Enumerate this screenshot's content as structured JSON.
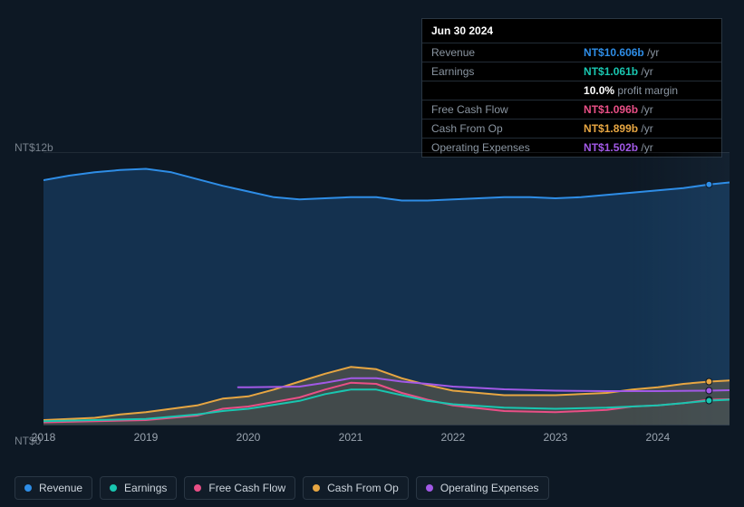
{
  "colors": {
    "revenue": "#2e8de6",
    "earnings": "#19c6b0",
    "free_cash_flow": "#e94f86",
    "cash_from_op": "#e7a642",
    "operating_expenses": "#a259e6",
    "bg": "#0d1824",
    "tooltip_bg": "#000000",
    "tooltip_border": "#2a3642",
    "text_muted": "#8a95a1"
  },
  "tooltip": {
    "date": "Jun 30 2024",
    "rows": [
      {
        "label": "Revenue",
        "value": "NT$10.606b",
        "suffix": "/yr",
        "colorKey": "revenue"
      },
      {
        "label": "Earnings",
        "value": "NT$1.061b",
        "suffix": "/yr",
        "colorKey": "earnings"
      },
      {
        "label": "",
        "value": "10.0%",
        "suffix": "profit margin",
        "colorKey": ""
      },
      {
        "label": "Free Cash Flow",
        "value": "NT$1.096b",
        "suffix": "/yr",
        "colorKey": "free_cash_flow"
      },
      {
        "label": "Cash From Op",
        "value": "NT$1.899b",
        "suffix": "/yr",
        "colorKey": "cash_from_op"
      },
      {
        "label": "Operating Expenses",
        "value": "NT$1.502b",
        "suffix": "/yr",
        "colorKey": "operating_expenses"
      }
    ]
  },
  "chart": {
    "type": "area-line",
    "ylim": [
      0,
      12
    ],
    "y_ticks": [
      {
        "v": 12,
        "label": "NT$12b"
      },
      {
        "v": 0,
        "label": "NT$0"
      }
    ],
    "x_range": [
      2018,
      2024.7
    ],
    "x_ticks": [
      2018,
      2019,
      2020,
      2021,
      2022,
      2023,
      2024
    ],
    "marker_x": 2024.5,
    "series": {
      "revenue": {
        "fill": true,
        "points": [
          [
            2018,
            10.8
          ],
          [
            2018.25,
            11.0
          ],
          [
            2018.5,
            11.15
          ],
          [
            2018.75,
            11.25
          ],
          [
            2019,
            11.3
          ],
          [
            2019.25,
            11.15
          ],
          [
            2019.5,
            10.85
          ],
          [
            2019.75,
            10.55
          ],
          [
            2020,
            10.3
          ],
          [
            2020.25,
            10.05
          ],
          [
            2020.5,
            9.95
          ],
          [
            2020.75,
            10.0
          ],
          [
            2021,
            10.05
          ],
          [
            2021.25,
            10.05
          ],
          [
            2021.5,
            9.9
          ],
          [
            2021.75,
            9.9
          ],
          [
            2022,
            9.95
          ],
          [
            2022.25,
            10.0
          ],
          [
            2022.5,
            10.05
          ],
          [
            2022.75,
            10.05
          ],
          [
            2023,
            10.0
          ],
          [
            2023.25,
            10.05
          ],
          [
            2023.5,
            10.15
          ],
          [
            2023.75,
            10.25
          ],
          [
            2024,
            10.35
          ],
          [
            2024.25,
            10.45
          ],
          [
            2024.5,
            10.61
          ],
          [
            2024.7,
            10.7
          ]
        ]
      },
      "cash_from_op": {
        "fill": true,
        "points": [
          [
            2018,
            0.2
          ],
          [
            2018.5,
            0.3
          ],
          [
            2018.75,
            0.45
          ],
          [
            2019,
            0.55
          ],
          [
            2019.5,
            0.85
          ],
          [
            2019.75,
            1.15
          ],
          [
            2020,
            1.25
          ],
          [
            2020.25,
            1.55
          ],
          [
            2020.5,
            1.9
          ],
          [
            2020.75,
            2.25
          ],
          [
            2021,
            2.55
          ],
          [
            2021.25,
            2.45
          ],
          [
            2021.5,
            2.05
          ],
          [
            2021.75,
            1.75
          ],
          [
            2022,
            1.5
          ],
          [
            2022.5,
            1.3
          ],
          [
            2023,
            1.3
          ],
          [
            2023.5,
            1.4
          ],
          [
            2023.75,
            1.55
          ],
          [
            2024,
            1.65
          ],
          [
            2024.25,
            1.8
          ],
          [
            2024.5,
            1.9
          ],
          [
            2024.7,
            1.95
          ]
        ]
      },
      "operating_expenses": {
        "fill": false,
        "points": [
          [
            2019.9,
            1.65
          ],
          [
            2020,
            1.65
          ],
          [
            2020.5,
            1.68
          ],
          [
            2020.75,
            1.85
          ],
          [
            2021,
            2.05
          ],
          [
            2021.25,
            2.05
          ],
          [
            2021.5,
            1.9
          ],
          [
            2021.75,
            1.8
          ],
          [
            2022,
            1.68
          ],
          [
            2022.5,
            1.56
          ],
          [
            2023,
            1.5
          ],
          [
            2023.5,
            1.48
          ],
          [
            2024,
            1.48
          ],
          [
            2024.5,
            1.5
          ],
          [
            2024.7,
            1.52
          ]
        ]
      },
      "free_cash_flow": {
        "fill": false,
        "points": [
          [
            2018,
            0.1
          ],
          [
            2018.5,
            0.15
          ],
          [
            2019,
            0.2
          ],
          [
            2019.5,
            0.4
          ],
          [
            2019.75,
            0.7
          ],
          [
            2020,
            0.8
          ],
          [
            2020.5,
            1.2
          ],
          [
            2020.75,
            1.55
          ],
          [
            2021,
            1.85
          ],
          [
            2021.25,
            1.8
          ],
          [
            2021.5,
            1.4
          ],
          [
            2021.75,
            1.1
          ],
          [
            2022,
            0.85
          ],
          [
            2022.5,
            0.6
          ],
          [
            2023,
            0.55
          ],
          [
            2023.5,
            0.65
          ],
          [
            2023.75,
            0.8
          ],
          [
            2024,
            0.85
          ],
          [
            2024.25,
            0.95
          ],
          [
            2024.5,
            1.1
          ],
          [
            2024.7,
            1.12
          ]
        ]
      },
      "earnings": {
        "fill": false,
        "points": [
          [
            2018,
            0.15
          ],
          [
            2018.5,
            0.2
          ],
          [
            2019,
            0.25
          ],
          [
            2019.5,
            0.45
          ],
          [
            2019.75,
            0.6
          ],
          [
            2020,
            0.7
          ],
          [
            2020.5,
            1.05
          ],
          [
            2020.75,
            1.35
          ],
          [
            2021,
            1.55
          ],
          [
            2021.25,
            1.55
          ],
          [
            2021.5,
            1.3
          ],
          [
            2021.75,
            1.05
          ],
          [
            2022,
            0.9
          ],
          [
            2022.5,
            0.75
          ],
          [
            2023,
            0.7
          ],
          [
            2023.5,
            0.75
          ],
          [
            2024,
            0.85
          ],
          [
            2024.25,
            0.95
          ],
          [
            2024.5,
            1.06
          ],
          [
            2024.7,
            1.1
          ]
        ]
      }
    },
    "line_width": 2,
    "marker_radius": 3.5,
    "fill_opacity": 0.22
  },
  "legend": [
    {
      "key": "revenue",
      "label": "Revenue"
    },
    {
      "key": "earnings",
      "label": "Earnings"
    },
    {
      "key": "free_cash_flow",
      "label": "Free Cash Flow"
    },
    {
      "key": "cash_from_op",
      "label": "Cash From Op"
    },
    {
      "key": "operating_expenses",
      "label": "Operating Expenses"
    }
  ]
}
